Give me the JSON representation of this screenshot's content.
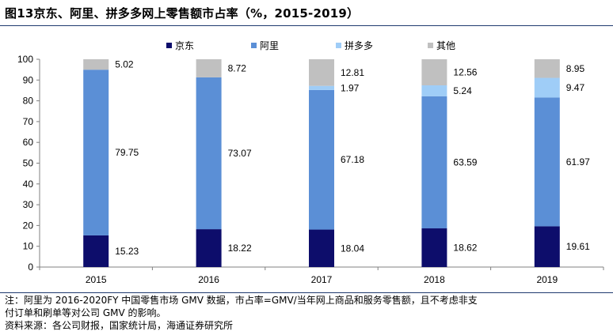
{
  "title": "图13京东、阿里、拼多多网上零售额市占率（%，2015-2019）",
  "notes": {
    "line1": "注：阿里为 2016-2020FY 中国零售市场 GMV 数据，市占率=GMV/当年网上商品和服务零售额，且不考虑非支",
    "line2": "付订单和刷单等对公司 GMV 的影响。",
    "source": "资料来源：各公司财报，国家统计局，海通证券研究所"
  },
  "chart_data": {
    "type": "bar",
    "stacked": true,
    "title": "图13京东、阿里、拼多多网上零售额市占率（%，2015-2019）",
    "categories": [
      "2015",
      "2016",
      "2017",
      "2018",
      "2019"
    ],
    "series": [
      {
        "name": "京东",
        "color": "#0d0d6b",
        "values": [
          15.23,
          18.22,
          18.04,
          18.62,
          19.61
        ]
      },
      {
        "name": "阿里",
        "color": "#5b8fd6",
        "values": [
          79.75,
          73.07,
          67.18,
          63.59,
          61.97
        ]
      },
      {
        "name": "拼多多",
        "color": "#9fcdf7",
        "values": [
          0,
          0,
          1.97,
          5.24,
          9.47
        ]
      },
      {
        "name": "其他",
        "color": "#c0c0c0",
        "values": [
          5.02,
          8.72,
          12.81,
          12.56,
          8.95
        ]
      }
    ],
    "data_labels": [
      [
        "15.23",
        "79.75",
        "",
        "5.02"
      ],
      [
        "18.22",
        "73.07",
        "",
        "8.72"
      ],
      [
        "18.04",
        "67.18",
        "1.97",
        "12.81"
      ],
      [
        "18.62",
        "63.59",
        "5.24",
        "12.56"
      ],
      [
        "19.61",
        "61.97",
        "9.47",
        "8.95"
      ]
    ],
    "ylim": [
      0,
      100
    ],
    "yticks": [
      "0",
      "10",
      "20",
      "30",
      "40",
      "50",
      "60",
      "70",
      "80",
      "90",
      "100"
    ],
    "xlabel": "",
    "ylabel": "",
    "grid": false,
    "legend_position": "top"
  }
}
